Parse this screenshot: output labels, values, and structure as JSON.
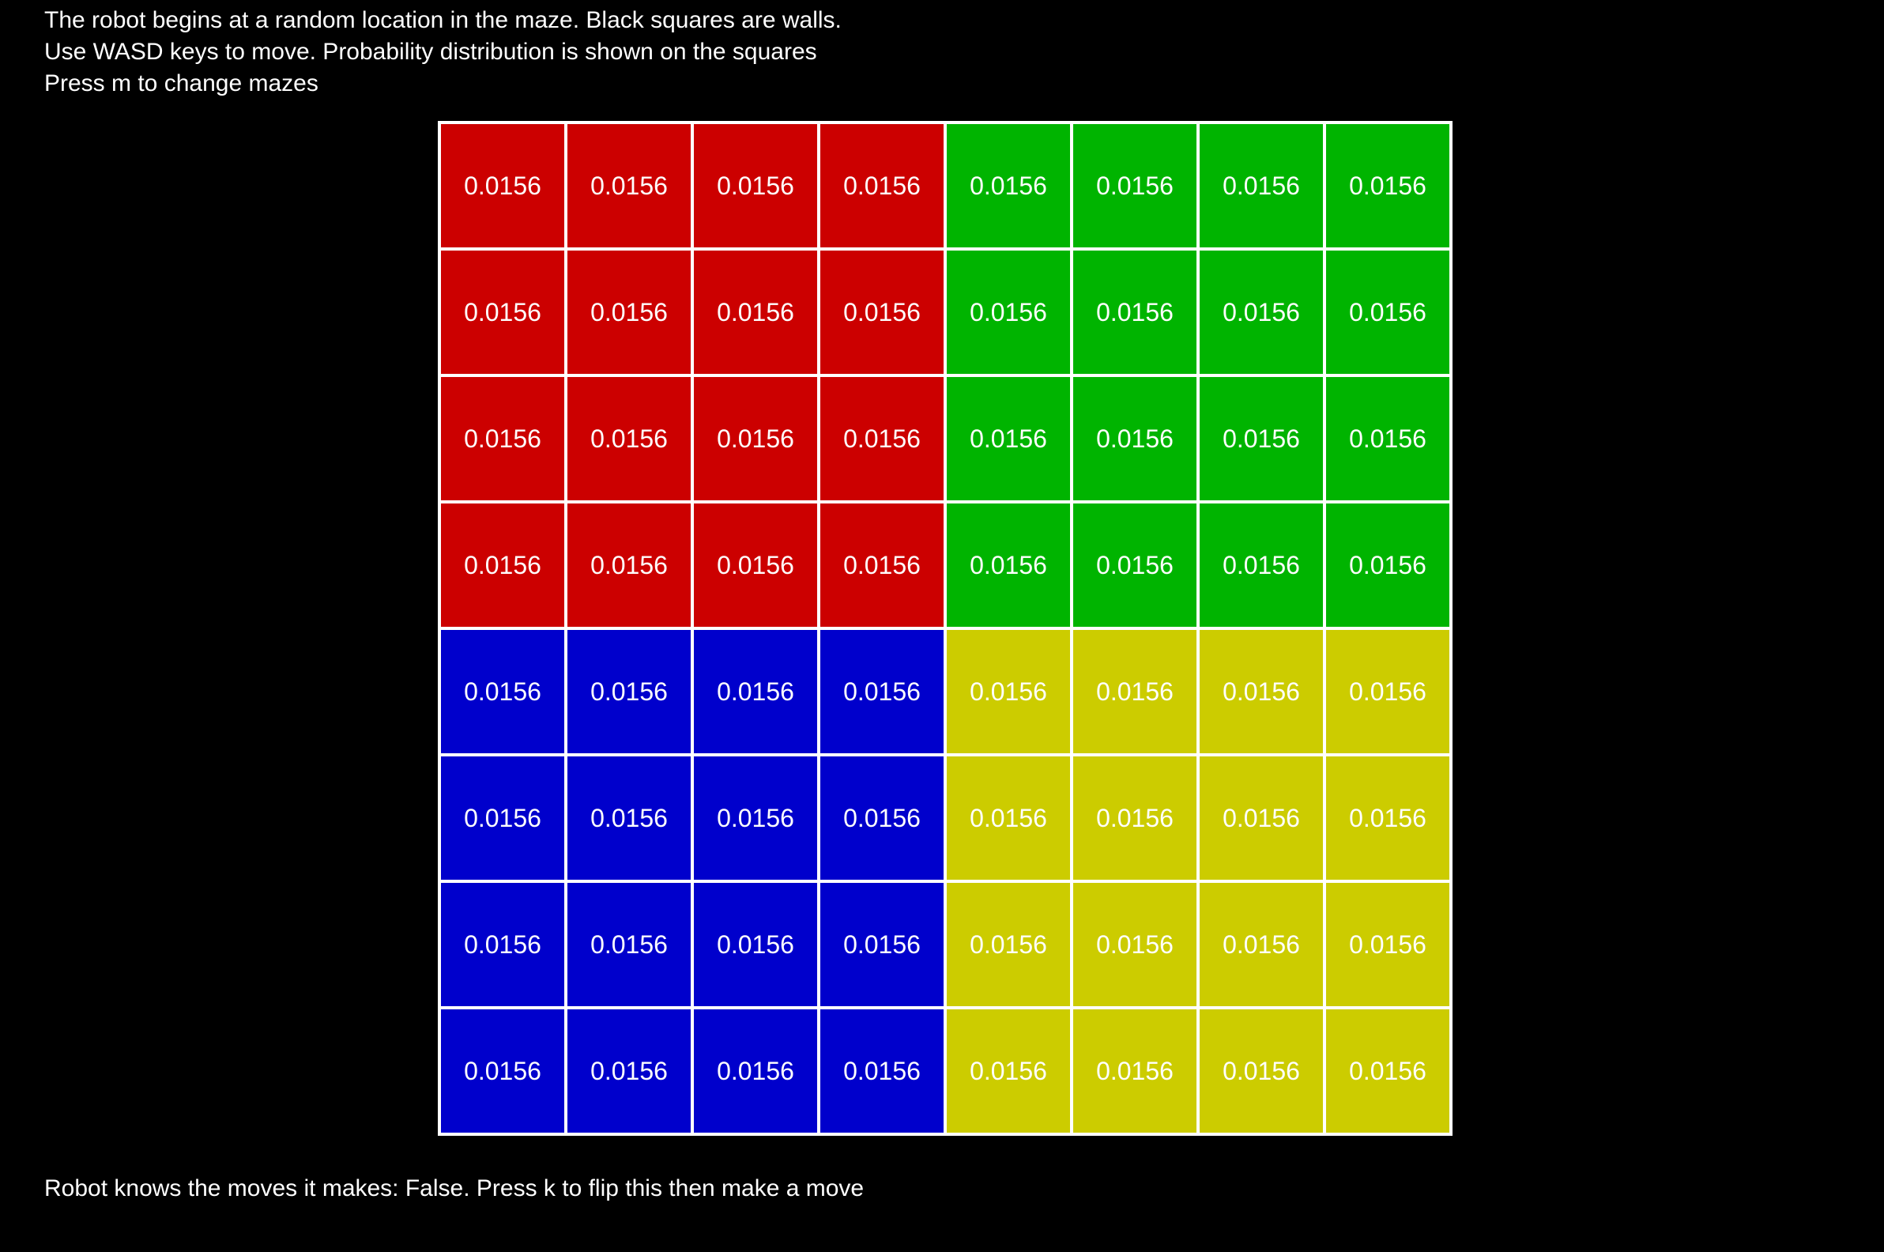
{
  "instructions": [
    "The robot begins at a random location in the maze. Black squares are walls.",
    "Use WASD keys to move. Probability distribution is shown on the squares",
    "Press m to change mazes"
  ],
  "maze": {
    "rows": 8,
    "cols": 8,
    "colors": {
      "red": "#cc0000",
      "green": "#00b400",
      "blue": "#0000cc",
      "yellow": "#cccc00",
      "grid_line": "#ffffff",
      "background": "#000000"
    },
    "cells": [
      [
        {
          "color": "red",
          "value": "0.0156"
        },
        {
          "color": "red",
          "value": "0.0156"
        },
        {
          "color": "red",
          "value": "0.0156"
        },
        {
          "color": "red",
          "value": "0.0156"
        },
        {
          "color": "green",
          "value": "0.0156"
        },
        {
          "color": "green",
          "value": "0.0156"
        },
        {
          "color": "green",
          "value": "0.0156"
        },
        {
          "color": "green",
          "value": "0.0156"
        }
      ],
      [
        {
          "color": "red",
          "value": "0.0156"
        },
        {
          "color": "red",
          "value": "0.0156"
        },
        {
          "color": "red",
          "value": "0.0156"
        },
        {
          "color": "red",
          "value": "0.0156"
        },
        {
          "color": "green",
          "value": "0.0156"
        },
        {
          "color": "green",
          "value": "0.0156"
        },
        {
          "color": "green",
          "value": "0.0156"
        },
        {
          "color": "green",
          "value": "0.0156"
        }
      ],
      [
        {
          "color": "red",
          "value": "0.0156"
        },
        {
          "color": "red",
          "value": "0.0156"
        },
        {
          "color": "red",
          "value": "0.0156"
        },
        {
          "color": "red",
          "value": "0.0156"
        },
        {
          "color": "green",
          "value": "0.0156"
        },
        {
          "color": "green",
          "value": "0.0156"
        },
        {
          "color": "green",
          "value": "0.0156"
        },
        {
          "color": "green",
          "value": "0.0156"
        }
      ],
      [
        {
          "color": "red",
          "value": "0.0156"
        },
        {
          "color": "red",
          "value": "0.0156"
        },
        {
          "color": "red",
          "value": "0.0156"
        },
        {
          "color": "red",
          "value": "0.0156"
        },
        {
          "color": "green",
          "value": "0.0156"
        },
        {
          "color": "green",
          "value": "0.0156"
        },
        {
          "color": "green",
          "value": "0.0156"
        },
        {
          "color": "green",
          "value": "0.0156"
        }
      ],
      [
        {
          "color": "blue",
          "value": "0.0156"
        },
        {
          "color": "blue",
          "value": "0.0156"
        },
        {
          "color": "blue",
          "value": "0.0156"
        },
        {
          "color": "blue",
          "value": "0.0156"
        },
        {
          "color": "yellow",
          "value": "0.0156"
        },
        {
          "color": "yellow",
          "value": "0.0156"
        },
        {
          "color": "yellow",
          "value": "0.0156"
        },
        {
          "color": "yellow",
          "value": "0.0156"
        }
      ],
      [
        {
          "color": "blue",
          "value": "0.0156"
        },
        {
          "color": "blue",
          "value": "0.0156"
        },
        {
          "color": "blue",
          "value": "0.0156"
        },
        {
          "color": "blue",
          "value": "0.0156"
        },
        {
          "color": "yellow",
          "value": "0.0156"
        },
        {
          "color": "yellow",
          "value": "0.0156"
        },
        {
          "color": "yellow",
          "value": "0.0156"
        },
        {
          "color": "yellow",
          "value": "0.0156"
        }
      ],
      [
        {
          "color": "blue",
          "value": "0.0156"
        },
        {
          "color": "blue",
          "value": "0.0156"
        },
        {
          "color": "blue",
          "value": "0.0156"
        },
        {
          "color": "blue",
          "value": "0.0156"
        },
        {
          "color": "yellow",
          "value": "0.0156"
        },
        {
          "color": "yellow",
          "value": "0.0156"
        },
        {
          "color": "yellow",
          "value": "0.0156"
        },
        {
          "color": "yellow",
          "value": "0.0156"
        }
      ],
      [
        {
          "color": "blue",
          "value": "0.0156"
        },
        {
          "color": "blue",
          "value": "0.0156"
        },
        {
          "color": "blue",
          "value": "0.0156"
        },
        {
          "color": "blue",
          "value": "0.0156"
        },
        {
          "color": "yellow",
          "value": "0.0156"
        },
        {
          "color": "yellow",
          "value": "0.0156"
        },
        {
          "color": "yellow",
          "value": "0.0156"
        },
        {
          "color": "yellow",
          "value": "0.0156"
        }
      ]
    ]
  },
  "status": "Robot knows the moves it makes: False. Press k to flip this then make a move"
}
